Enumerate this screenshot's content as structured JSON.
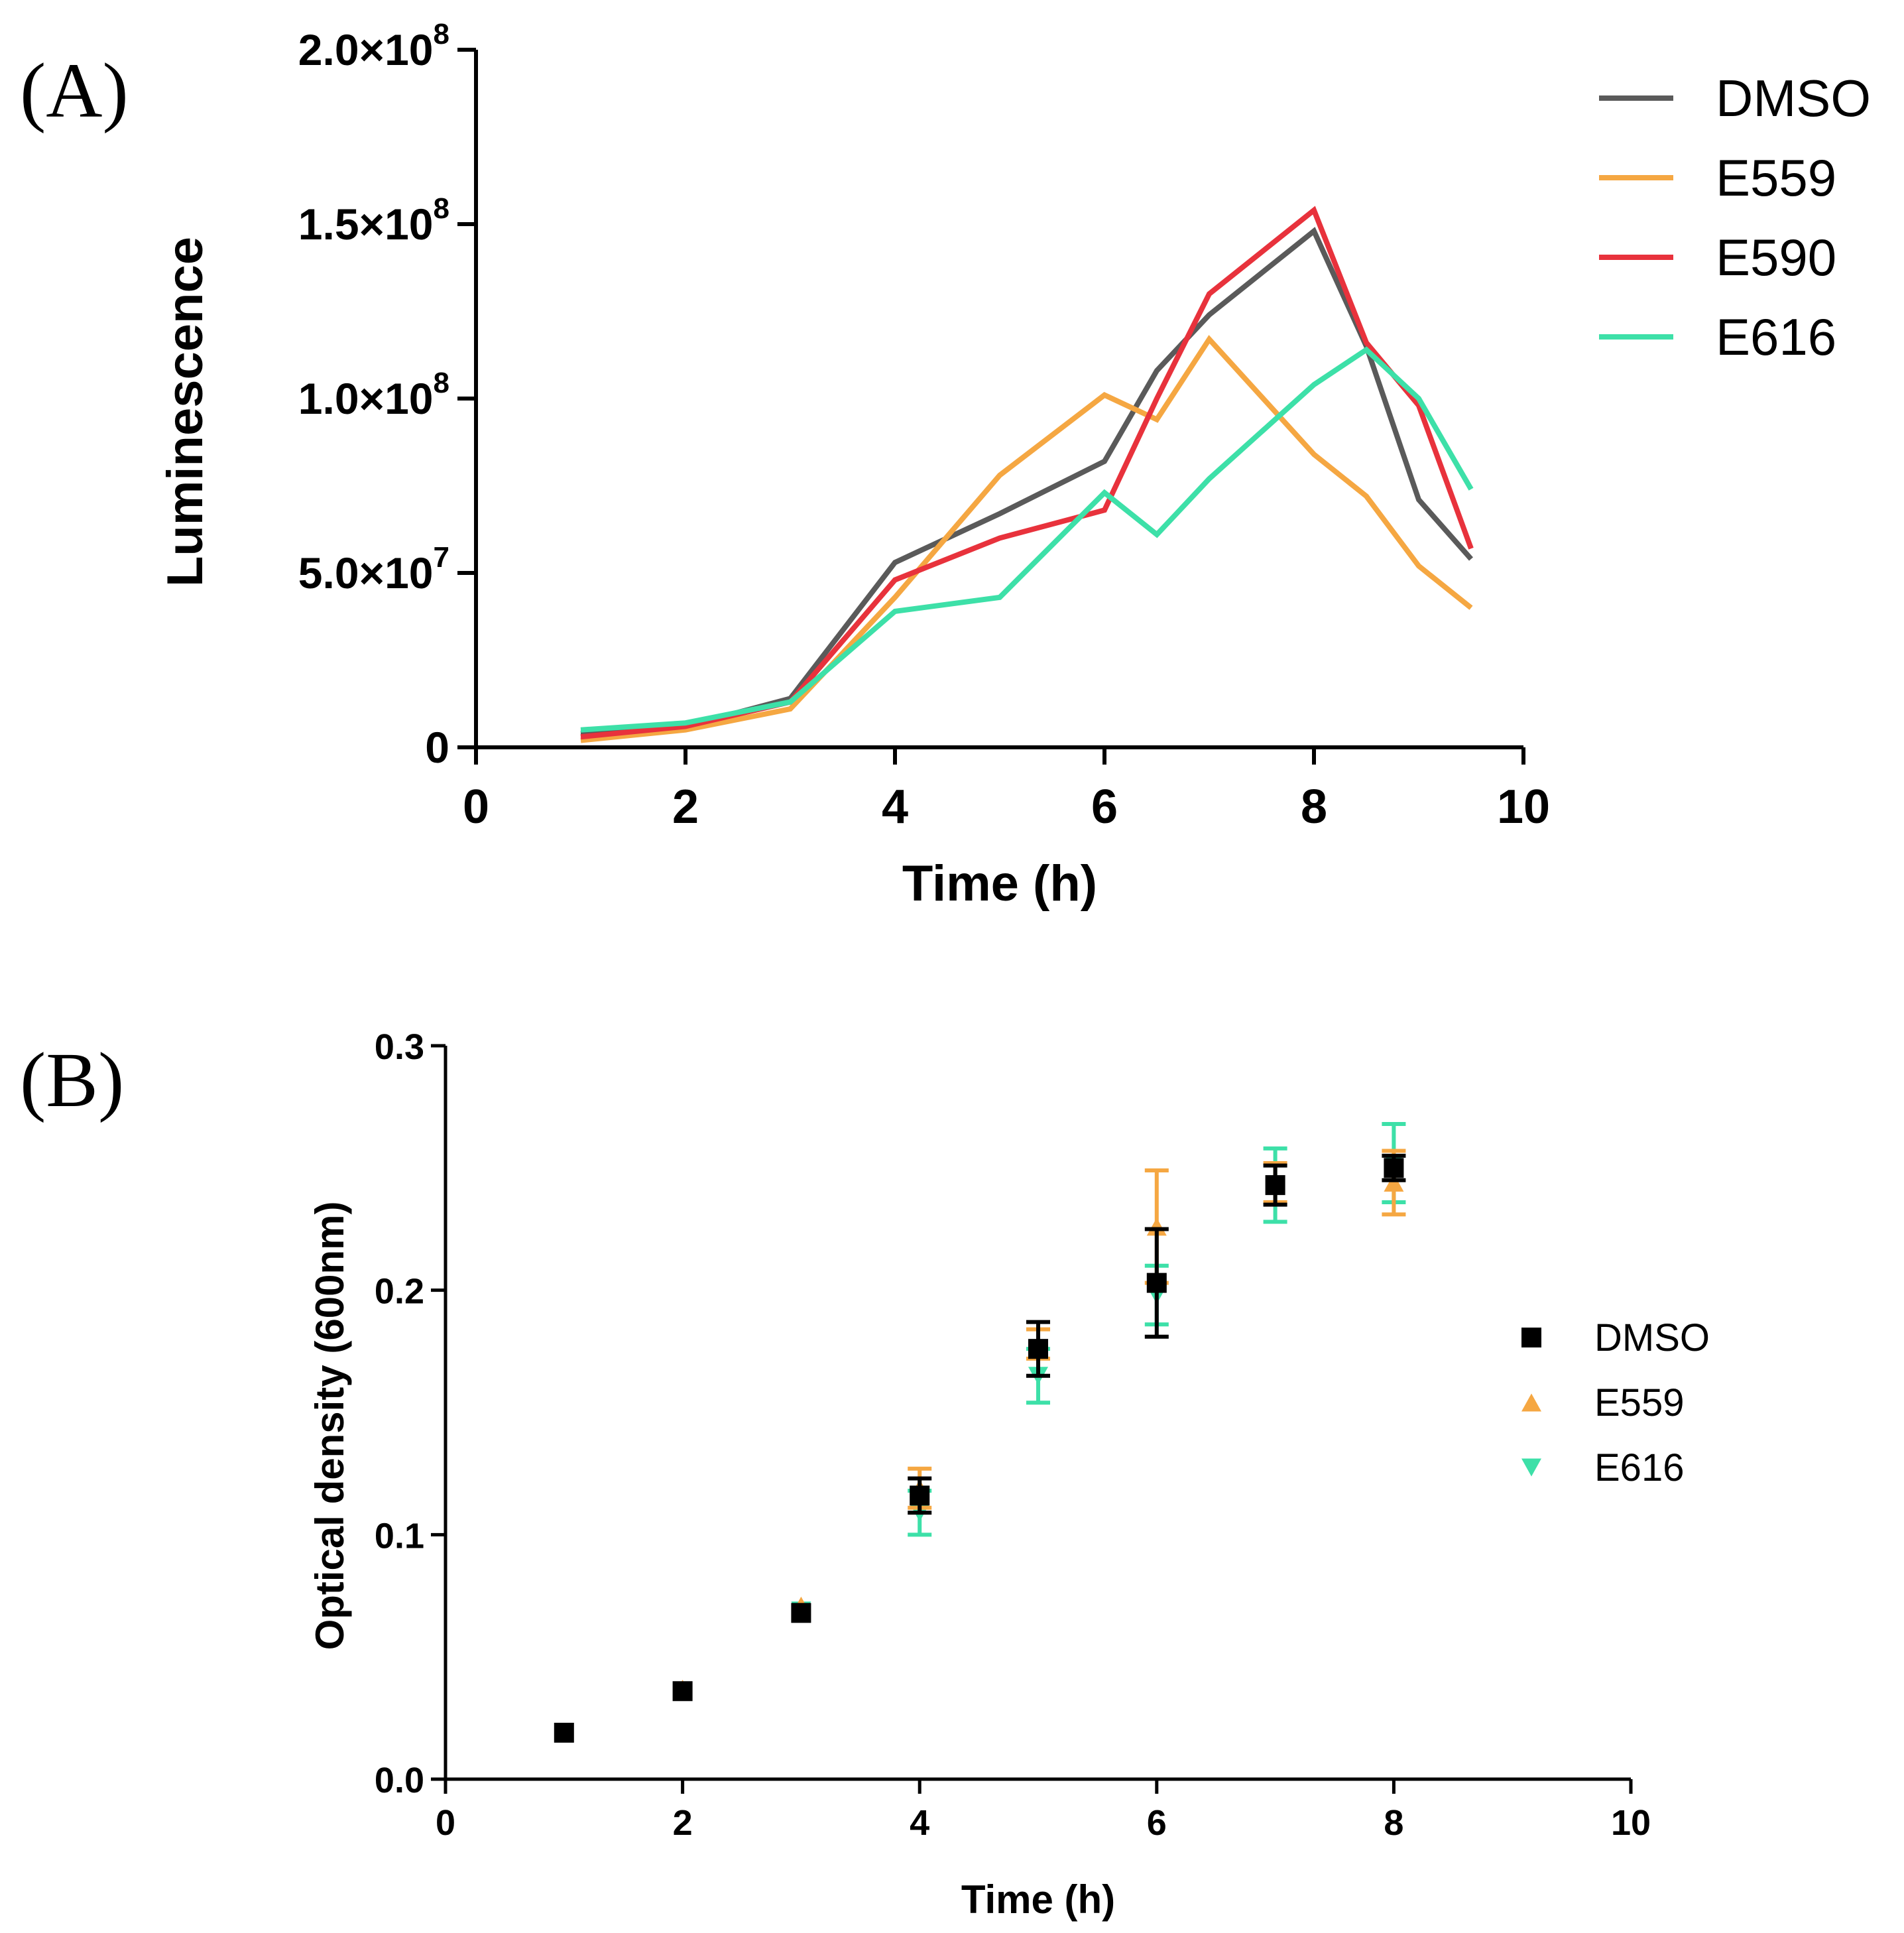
{
  "panels": {
    "a": {
      "label": "(A)"
    },
    "b": {
      "label": "(B)"
    }
  },
  "chart_data": [
    {
      "id": "A",
      "type": "line",
      "title": "",
      "xlabel": "Time (h)",
      "ylabel": "Luminescence",
      "xlim": [
        0,
        10
      ],
      "ylim": [
        0,
        200000000
      ],
      "xticks": [
        0,
        2,
        4,
        6,
        8,
        10
      ],
      "xtick_labels": [
        "0",
        "2",
        "4",
        "6",
        "8",
        "10"
      ],
      "yticks": [
        0,
        50000000,
        100000000,
        150000000,
        200000000
      ],
      "ytick_labels": [
        {
          "base": "0",
          "exp": ""
        },
        {
          "base": "5.0×10",
          "exp": "7"
        },
        {
          "base": "1.0×10",
          "exp": "8"
        },
        {
          "base": "1.5×10",
          "exp": "8"
        },
        {
          "base": "2.0×10",
          "exp": "8"
        }
      ],
      "legend_position": "top-right",
      "series": [
        {
          "name": "DMSO",
          "color": "#5a5a5a",
          "x": [
            1,
            2,
            3,
            4,
            5,
            6,
            6.5,
            7,
            8,
            8.5,
            9,
            9.5
          ],
          "y": [
            4000000,
            6000000,
            14000000,
            53000000,
            67000000,
            82000000,
            108000000,
            124000000,
            148000000,
            115000000,
            71000000,
            54000000
          ]
        },
        {
          "name": "E559",
          "color": "#f5a742",
          "x": [
            1,
            2,
            3,
            4,
            5,
            6,
            6.5,
            7,
            8,
            8.5,
            9,
            9.5
          ],
          "y": [
            2000000,
            5000000,
            11000000,
            43000000,
            78000000,
            101000000,
            94000000,
            117000000,
            84000000,
            72000000,
            52000000,
            40000000
          ]
        },
        {
          "name": "E590",
          "color": "#e8323c",
          "x": [
            1,
            2,
            3,
            4,
            5,
            6,
            6.5,
            7,
            8,
            8.5,
            9,
            9.5
          ],
          "y": [
            3000000,
            6000000,
            13000000,
            48000000,
            60000000,
            68000000,
            100000000,
            130000000,
            154000000,
            116000000,
            98000000,
            57000000
          ]
        },
        {
          "name": "E616",
          "color": "#3de0a8",
          "x": [
            1,
            2,
            3,
            4,
            5,
            6,
            6.5,
            7,
            8,
            8.5,
            9,
            9.5
          ],
          "y": [
            5000000,
            7000000,
            13000000,
            39000000,
            43000000,
            73000000,
            61000000,
            77000000,
            104000000,
            114000000,
            100000000,
            74000000
          ]
        }
      ]
    },
    {
      "id": "B",
      "type": "scatter",
      "title": "",
      "xlabel": "Time (h)",
      "ylabel": "Optical density (600nm)",
      "xlim": [
        0,
        10
      ],
      "ylim": [
        0,
        0.3
      ],
      "xticks": [
        0,
        2,
        4,
        6,
        8,
        10
      ],
      "xtick_labels": [
        "0",
        "2",
        "4",
        "6",
        "8",
        "10"
      ],
      "yticks": [
        0,
        0.1,
        0.2,
        0.3
      ],
      "ytick_labels": [
        "0.0",
        "0.1",
        "0.2",
        "0.3"
      ],
      "legend_position": "right",
      "series": [
        {
          "name": "E616",
          "color": "#3de0a8",
          "marker": "triangle-down",
          "x": [
            1,
            2,
            3,
            4,
            5,
            6,
            7,
            8
          ],
          "y": [
            0.019,
            0.036,
            0.069,
            0.109,
            0.165,
            0.198,
            0.243,
            0.252
          ],
          "err": [
            0,
            0,
            0,
            0.009,
            0.011,
            0.012,
            0.015,
            0.016
          ]
        },
        {
          "name": "E559",
          "color": "#f5a742",
          "marker": "triangle-up",
          "x": [
            1,
            2,
            3,
            4,
            5,
            6,
            7,
            8
          ],
          "y": [
            0.019,
            0.037,
            0.071,
            0.119,
            0.178,
            0.226,
            0.244,
            0.244
          ],
          "err": [
            0,
            0,
            0,
            0.008,
            0.006,
            0.023,
            0.008,
            0.013
          ]
        },
        {
          "name": "DMSO",
          "color": "#000000",
          "marker": "square",
          "x": [
            1,
            2,
            3,
            4,
            5,
            6,
            7,
            8
          ],
          "y": [
            0.019,
            0.036,
            0.068,
            0.116,
            0.176,
            0.203,
            0.243,
            0.25
          ],
          "err": [
            0,
            0,
            0,
            0.007,
            0.011,
            0.022,
            0.008,
            0.005
          ]
        }
      ],
      "legend_order": [
        "DMSO",
        "E559",
        "E616"
      ]
    }
  ]
}
